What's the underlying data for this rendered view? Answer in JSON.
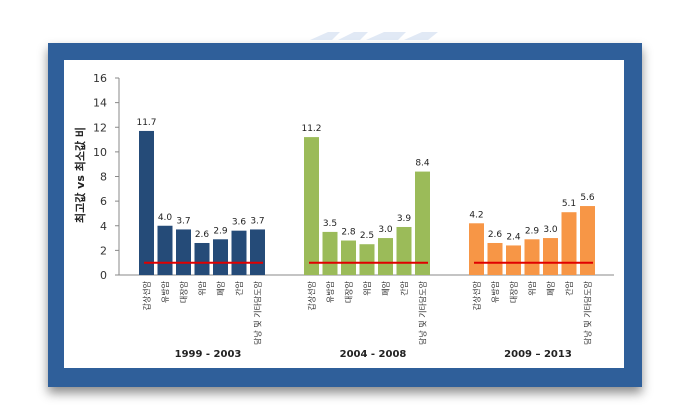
{
  "colors": {
    "frame": "#2f5f9a",
    "group1": "#254b78",
    "group2": "#9bbb59",
    "group3": "#f79646",
    "reference_line": "#e00000",
    "axis": "#888888"
  },
  "chart_data": {
    "type": "bar",
    "ylabel": "최고값 vs 최소값 비",
    "ylim": [
      0,
      16
    ],
    "yticks": [
      0,
      2,
      4,
      6,
      8,
      10,
      12,
      14,
      16
    ],
    "reference_value": 1,
    "groups": [
      {
        "period": "1999 - 2003",
        "categories": [
          "갑상선암",
          "유방암",
          "대장암",
          "위암",
          "폐암",
          "간암",
          "담낭 및 기타담도암"
        ],
        "values": [
          11.7,
          4.0,
          3.7,
          2.6,
          2.9,
          3.6,
          3.7
        ],
        "labels": [
          "11.7",
          "4.0",
          "3.7",
          "2.6",
          "2.9",
          "3.6",
          "3.7"
        ]
      },
      {
        "period": "2004 - 2008",
        "categories": [
          "갑상선암",
          "유방암",
          "대장암",
          "위암",
          "폐암",
          "간암",
          "담낭 및 기타담도암"
        ],
        "values": [
          11.2,
          3.5,
          2.8,
          2.5,
          3.0,
          3.9,
          8.4
        ],
        "labels": [
          "11.2",
          "3.5",
          "2.8",
          "2.5",
          "3.0",
          "3.9",
          "8.4"
        ]
      },
      {
        "period": "2009 – 2013",
        "categories": [
          "갑상선암",
          "유방암",
          "대장암",
          "위암",
          "폐암",
          "간암",
          "담낭 및 기타담도암"
        ],
        "values": [
          4.2,
          2.6,
          2.4,
          2.9,
          3.0,
          5.1,
          5.6
        ],
        "labels": [
          "4.2",
          "2.6",
          "2.4",
          "2.9",
          "3.0",
          "5.1",
          "5.6"
        ]
      }
    ]
  }
}
